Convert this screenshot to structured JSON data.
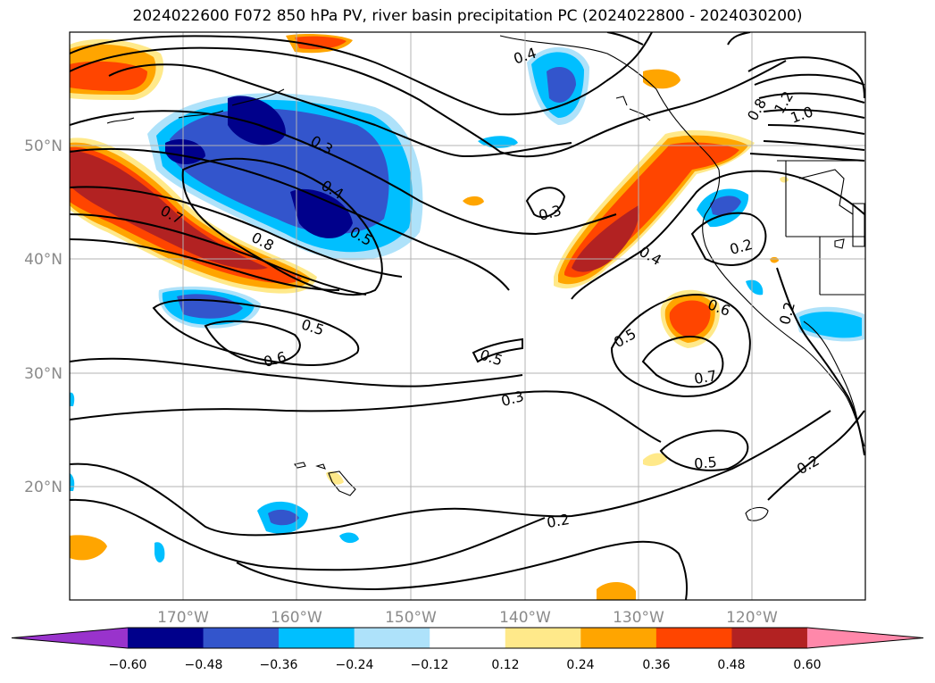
{
  "title": "2024022600 F072 850 hPa PV, river basin precipitation PC (2024022800 - 2024030200)",
  "map": {
    "lat_labels": [
      "50°N",
      "40°N",
      "30°N",
      "20°N"
    ],
    "lon_labels": [
      "170°W",
      "160°W",
      "150°W",
      "140°W",
      "130°W",
      "120°W"
    ],
    "contour_labels": [
      "0.4",
      "0.3",
      "0.4",
      "0.5",
      "0.7",
      "0.8",
      "0.5",
      "0.6",
      "0.5",
      "0.3",
      "0.3",
      "0.4",
      "0.6",
      "0.5",
      "0.7",
      "0.2",
      "0.2",
      "0.5",
      "0.2",
      "0.2",
      "1.2",
      "0.8",
      "1.0"
    ]
  },
  "colorbar": {
    "ticks": [
      "−0.60",
      "−0.48",
      "−0.36",
      "−0.24",
      "−0.12",
      "0.12",
      "0.24",
      "0.36",
      "0.48",
      "0.60"
    ],
    "colors": [
      "#9933cc",
      "#00008b",
      "#3355cc",
      "#00bfff",
      "#aee2fa",
      "#ffffff",
      "#ffe98a",
      "#ffa500",
      "#ff4500",
      "#b22222",
      "#ff88aa"
    ]
  }
}
